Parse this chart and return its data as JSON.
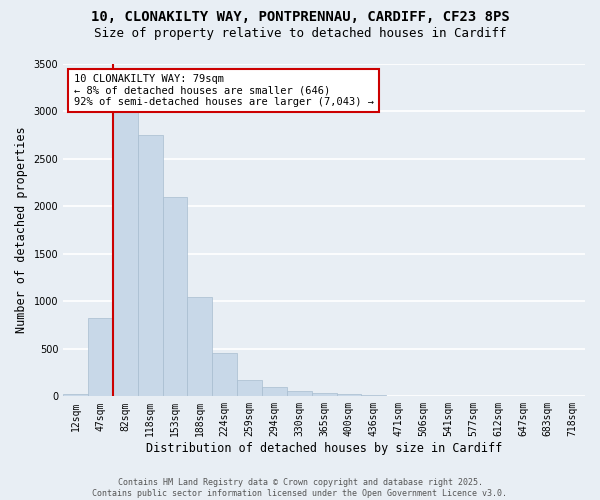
{
  "title_line1": "10, CLONAKILTY WAY, PONTPRENNAU, CARDIFF, CF23 8PS",
  "title_line2": "Size of property relative to detached houses in Cardiff",
  "xlabel": "Distribution of detached houses by size in Cardiff",
  "ylabel": "Number of detached properties",
  "categories": [
    "12sqm",
    "47sqm",
    "82sqm",
    "118sqm",
    "153sqm",
    "188sqm",
    "224sqm",
    "259sqm",
    "294sqm",
    "330sqm",
    "365sqm",
    "400sqm",
    "436sqm",
    "471sqm",
    "506sqm",
    "541sqm",
    "577sqm",
    "612sqm",
    "647sqm",
    "683sqm",
    "718sqm"
  ],
  "values": [
    20,
    830,
    3280,
    2750,
    2100,
    1050,
    460,
    170,
    100,
    60,
    40,
    20,
    10,
    5,
    3,
    3,
    3,
    3,
    3,
    3,
    3
  ],
  "bar_color": "#c8d8e8",
  "bar_edge_color": "#a8bdd0",
  "property_line_color": "#cc0000",
  "annotation_text": "10 CLONAKILTY WAY: 79sqm\n← 8% of detached houses are smaller (646)\n92% of semi-detached houses are larger (7,043) →",
  "annotation_box_color": "#ffffff",
  "annotation_box_edge_color": "#cc0000",
  "ylim": [
    0,
    3500
  ],
  "yticks": [
    0,
    500,
    1000,
    1500,
    2000,
    2500,
    3000,
    3500
  ],
  "bg_color": "#e8eef4",
  "plot_bg_color": "#e8eef4",
  "grid_color": "#ffffff",
  "footer_text": "Contains HM Land Registry data © Crown copyright and database right 2025.\nContains public sector information licensed under the Open Government Licence v3.0.",
  "title_fontsize": 10,
  "subtitle_fontsize": 9,
  "tick_fontsize": 7,
  "xlabel_fontsize": 8.5,
  "ylabel_fontsize": 8.5,
  "annotation_fontsize": 7.5,
  "footer_fontsize": 6
}
